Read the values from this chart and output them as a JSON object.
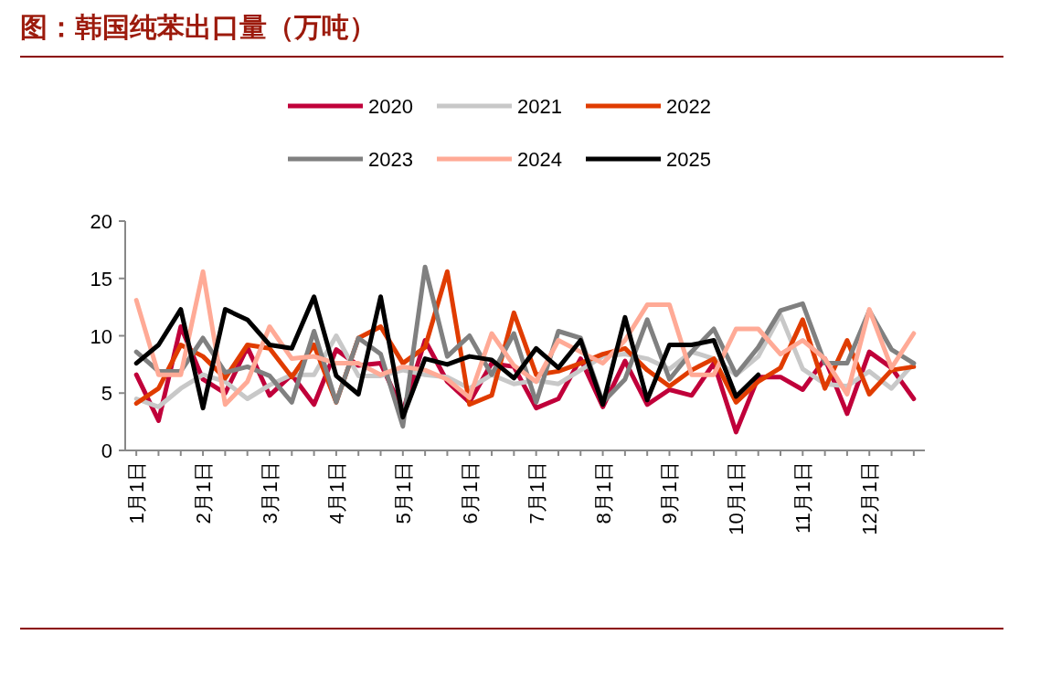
{
  "chart_data": {
    "type": "line",
    "title": "图：韩国纯苯出口量（万吨）",
    "categories": [
      "1月1日",
      null,
      null,
      "2月1日",
      null,
      null,
      "3月1日",
      null,
      null,
      "4月1日",
      null,
      null,
      "5月1日",
      null,
      null,
      "6月1日",
      null,
      null,
      "7月1日",
      null,
      null,
      "8月1日",
      null,
      null,
      "9月1日",
      null,
      null,
      "10月1日",
      null,
      null,
      "11月1日",
      null,
      null,
      "12月1日",
      null,
      null
    ],
    "series": [
      {
        "name": "2020",
        "color": "#c0003a",
        "values": [
          6.6,
          2.6,
          10.8,
          6.2,
          5.0,
          9.0,
          4.8,
          6.6,
          4.0,
          8.8,
          7.4,
          7.6,
          3.4,
          9.6,
          6.0,
          4.2,
          7.6,
          7.3,
          3.7,
          4.5,
          8.0,
          3.8,
          7.8,
          4.0,
          5.3,
          4.8,
          7.6,
          1.6,
          6.4,
          6.4,
          5.3,
          8.0,
          3.2,
          8.6,
          7.2,
          4.5
        ]
      },
      {
        "name": "2021",
        "color": "#c8c8c8",
        "values": [
          4.5,
          3.8,
          5.4,
          6.6,
          6.0,
          4.5,
          5.7,
          6.6,
          6.6,
          10.0,
          6.5,
          6.5,
          7.0,
          6.6,
          6.4,
          5.4,
          6.6,
          5.8,
          6.1,
          5.8,
          7.0,
          8.2,
          8.4,
          8.0,
          7.1,
          8.6,
          8.0,
          6.6,
          8.2,
          11.8,
          7.1,
          5.8,
          5.6,
          6.9,
          5.4,
          7.6
        ]
      },
      {
        "name": "2022",
        "color": "#e03c00",
        "values": [
          4.1,
          5.4,
          9.2,
          8.2,
          6.3,
          9.2,
          8.9,
          6.4,
          9.2,
          4.2,
          9.8,
          10.8,
          7.6,
          9.0,
          15.6,
          4.0,
          4.8,
          12.0,
          6.6,
          6.9,
          7.6,
          8.4,
          8.9,
          7.0,
          5.6,
          7.0,
          8.0,
          4.2,
          6.0,
          7.2,
          11.4,
          5.4,
          9.6,
          4.9,
          7.0,
          7.3
        ]
      },
      {
        "name": "2023",
        "color": "#808080",
        "values": [
          8.6,
          6.9,
          6.9,
          9.8,
          6.8,
          7.3,
          6.5,
          4.2,
          10.4,
          4.2,
          9.8,
          8.4,
          2.1,
          16.0,
          8.2,
          10.0,
          6.6,
          10.2,
          4.2,
          10.4,
          9.8,
          4.2,
          6.2,
          11.4,
          6.2,
          8.6,
          10.6,
          6.6,
          9.0,
          12.2,
          12.8,
          7.6,
          7.6,
          12.2,
          8.8,
          7.6
        ]
      },
      {
        "name": "2024",
        "color": "#ffaa96",
        "values": [
          13.1,
          6.6,
          6.6,
          15.6,
          4.0,
          6.0,
          10.8,
          8.0,
          8.2,
          7.6,
          7.6,
          6.6,
          7.3,
          7.0,
          6.2,
          4.6,
          10.2,
          7.4,
          6.0,
          9.6,
          8.6,
          7.6,
          9.6,
          12.7,
          12.7,
          6.6,
          6.6,
          10.6,
          10.6,
          8.4,
          9.6,
          8.0,
          4.9,
          12.3,
          7.2,
          10.2
        ]
      },
      {
        "name": "2025",
        "color": "#000000",
        "values": [
          7.6,
          9.2,
          12.3,
          3.7,
          12.3,
          11.4,
          9.2,
          8.9,
          13.4,
          6.5,
          4.9,
          13.4,
          2.9,
          8.0,
          7.5,
          8.2,
          7.9,
          6.3,
          8.9,
          7.2,
          9.6,
          4.0,
          11.6,
          4.4,
          9.2,
          9.2,
          9.6,
          4.7,
          6.6,
          null,
          null,
          null,
          null,
          null,
          null,
          null
        ]
      }
    ],
    "ylim": [
      0,
      20
    ],
    "yticks": [
      0,
      5,
      10,
      15,
      20
    ],
    "grid": false,
    "legend": "top",
    "marker": "none",
    "line_style": "solid"
  }
}
